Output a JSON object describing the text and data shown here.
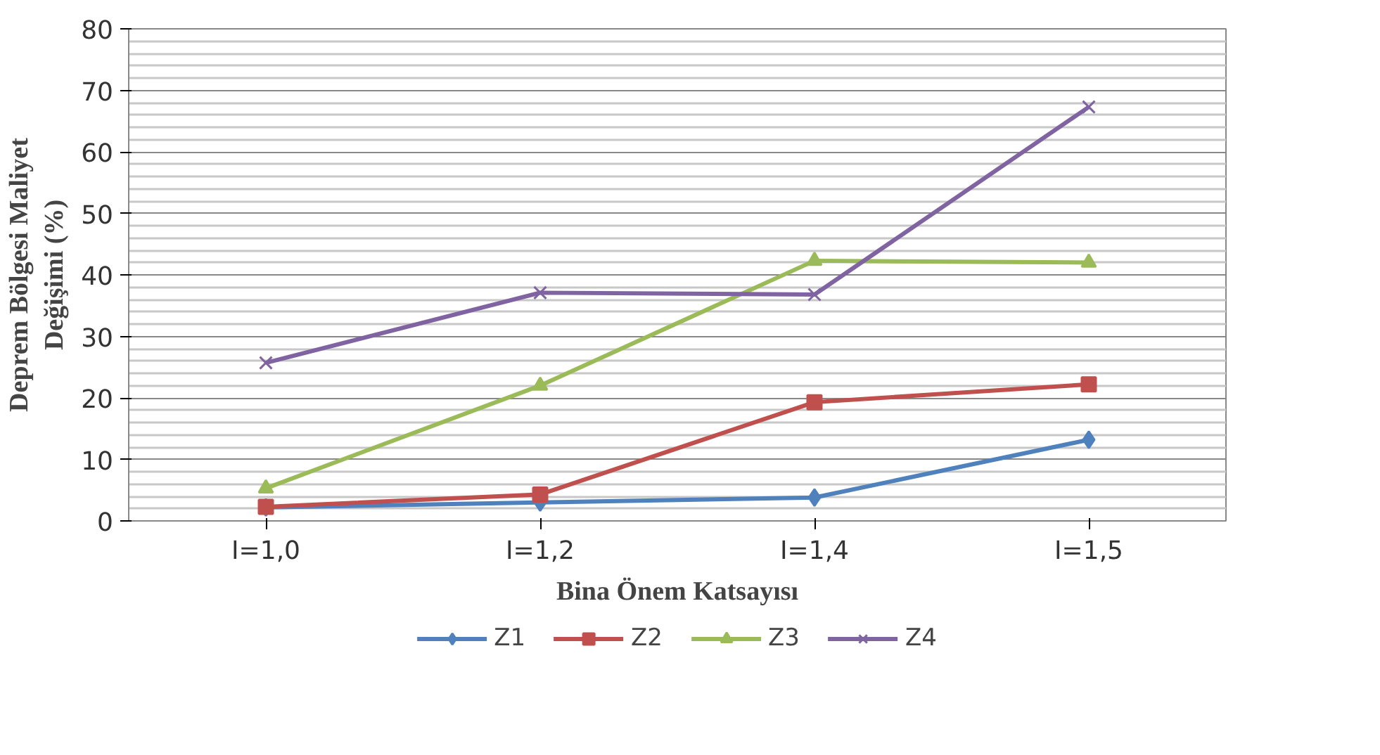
{
  "chart_data": {
    "type": "line",
    "xlabel": "Bina Önem Katsayısı",
    "ylabel": "Deprem Bölgesi Maliyet\nDeğişimi (%)",
    "categories": [
      "I=1,0",
      "I=1,2",
      "I=1,4",
      "I=1,5"
    ],
    "series": [
      {
        "name": "Z1",
        "color": "#4f81bd",
        "marker": "diamond",
        "values": [
          2.2,
          3.0,
          3.8,
          13.2
        ]
      },
      {
        "name": "Z2",
        "color": "#c0504d",
        "marker": "square",
        "values": [
          2.3,
          4.3,
          19.3,
          22.2
        ]
      },
      {
        "name": "Z3",
        "color": "#9bbb59",
        "marker": "triangle",
        "values": [
          5.3,
          22.0,
          42.3,
          42.0
        ]
      },
      {
        "name": "Z4",
        "color": "#8064a2",
        "marker": "cross",
        "values": [
          25.7,
          37.1,
          36.8,
          67.3
        ]
      }
    ],
    "ylim": [
      0,
      80
    ],
    "yticks": [
      0,
      10,
      20,
      30,
      40,
      50,
      60,
      70,
      80
    ],
    "grid": "y",
    "legend": "bottom"
  }
}
